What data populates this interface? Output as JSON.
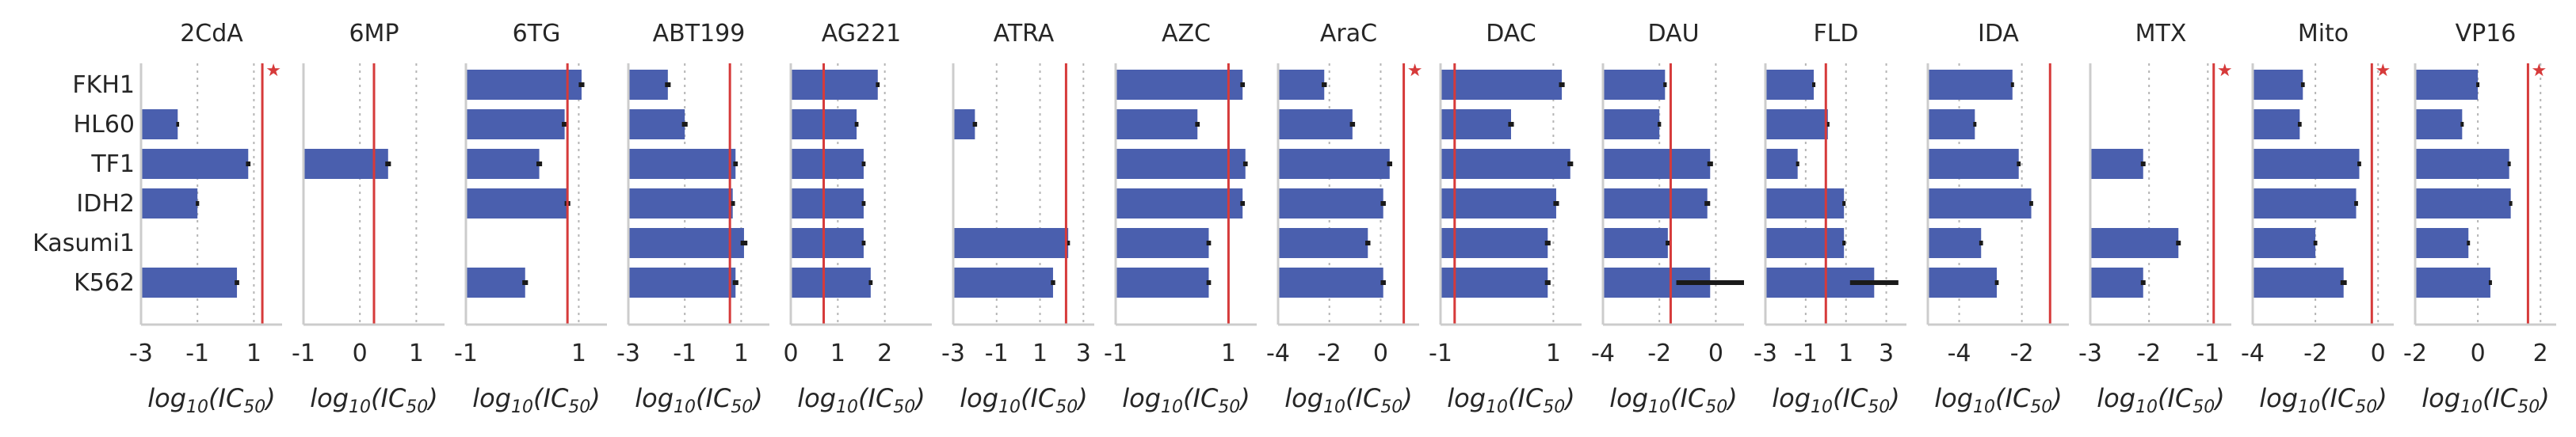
{
  "chart_data": {
    "type": "bar",
    "orientation": "horizontal",
    "categories": [
      "FKH1",
      "HL60",
      "TF1",
      "IDH2",
      "Kasumi1",
      "K562"
    ],
    "xlabel": "log10(IC50)",
    "bar_color": "#4a5fae",
    "reference_line_color": "#d63a3a",
    "grid": "dotted vertical gridlines",
    "panels": [
      {
        "title": "2CdA",
        "xlim": [
          -3,
          2
        ],
        "ticks": [
          -3,
          -1,
          1
        ],
        "tick_labels": [
          "-3",
          "-1",
          "1"
        ],
        "values": [
          null,
          -1.7,
          0.8,
          -1.0,
          null,
          0.4
        ],
        "errors": [
          0,
          0.05,
          0.08,
          0.06,
          0,
          0.08
        ],
        "ref": 1.3,
        "star": true
      },
      {
        "title": "6MP",
        "xlim": [
          -1,
          1.5
        ],
        "ticks": [
          -1,
          0,
          1
        ],
        "tick_labels": [
          "-1",
          "0",
          "1"
        ],
        "values": [
          null,
          null,
          0.5,
          null,
          null,
          null
        ],
        "errors": [
          0,
          0,
          0.05,
          0,
          0,
          0
        ],
        "ref": 0.25,
        "star": false
      },
      {
        "title": "6TG",
        "xlim": [
          -1,
          1.5
        ],
        "ticks": [
          -1,
          1
        ],
        "tick_labels": [
          "-1",
          "1"
        ],
        "values": [
          1.05,
          0.75,
          0.3,
          0.8,
          null,
          0.05
        ],
        "errors": [
          0.05,
          0.05,
          0.05,
          0.05,
          0,
          0.05
        ],
        "ref": 0.8,
        "star": false
      },
      {
        "title": "ABT199",
        "xlim": [
          -3,
          2
        ],
        "ticks": [
          -3,
          -1,
          1
        ],
        "tick_labels": [
          "-3",
          "-1",
          "1"
        ],
        "values": [
          -1.6,
          -1.0,
          0.8,
          0.7,
          1.1,
          0.8
        ],
        "errors": [
          0.1,
          0.1,
          0.08,
          0.08,
          0.12,
          0.1
        ],
        "ref": 0.6,
        "star": false
      },
      {
        "title": "AG221",
        "xlim": [
          0,
          3
        ],
        "ticks": [
          0,
          1,
          2
        ],
        "tick_labels": [
          "0",
          "1",
          "2"
        ],
        "values": [
          1.85,
          1.4,
          1.55,
          1.55,
          1.55,
          1.7
        ],
        "errors": [
          0.04,
          0.04,
          0.04,
          0.04,
          0.04,
          0.04
        ],
        "ref": 0.7,
        "star": false
      },
      {
        "title": "ATRA",
        "xlim": [
          -3,
          3.5
        ],
        "ticks": [
          -3,
          -1,
          1,
          3
        ],
        "tick_labels": [
          "-3",
          "-1",
          "1",
          "3"
        ],
        "values": [
          null,
          -2.0,
          null,
          null,
          2.3,
          1.6
        ],
        "errors": [
          0,
          0.1,
          0,
          0,
          0.08,
          0.1
        ],
        "ref": 2.2,
        "star": false
      },
      {
        "title": "AZC",
        "xlim": [
          -1,
          1.5
        ],
        "ticks": [
          -1,
          1
        ],
        "tick_labels": [
          "-1",
          "1"
        ],
        "values": [
          1.25,
          0.45,
          1.3,
          1.25,
          0.65,
          0.65
        ],
        "errors": [
          0.04,
          0.04,
          0.04,
          0.04,
          0.04,
          0.04
        ],
        "ref": 1.0,
        "star": false
      },
      {
        "title": "AraC",
        "xlim": [
          -4,
          1.5
        ],
        "ticks": [
          -4,
          -2,
          0
        ],
        "tick_labels": [
          "-4",
          "-2",
          "0"
        ],
        "values": [
          -2.2,
          -1.1,
          0.35,
          0.1,
          -0.5,
          0.1
        ],
        "errors": [
          0.1,
          0.1,
          0.1,
          0.1,
          0.1,
          0.1
        ],
        "ref": 0.9,
        "star": true
      },
      {
        "title": "DAC",
        "xlim": [
          -1,
          1.5
        ],
        "ticks": [
          -1,
          1
        ],
        "tick_labels": [
          "-1",
          "1"
        ],
        "values": [
          1.15,
          0.25,
          1.3,
          1.05,
          0.9,
          0.9
        ],
        "errors": [
          0.05,
          0.05,
          0.05,
          0.05,
          0.05,
          0.05
        ],
        "ref": -0.75,
        "star": false
      },
      {
        "title": "DAU",
        "xlim": [
          -4,
          1
        ],
        "ticks": [
          -4,
          -2,
          0
        ],
        "tick_labels": [
          "-4",
          "-2",
          "0"
        ],
        "values": [
          -1.8,
          -2.0,
          -0.2,
          -0.3,
          -1.7,
          -0.2
        ],
        "errors": [
          0.06,
          0.06,
          0.1,
          0.1,
          0.08,
          1.2
        ],
        "ref": -1.6,
        "star": false
      },
      {
        "title": "FLD",
        "xlim": [
          -3,
          4
        ],
        "ticks": [
          -3,
          -1,
          1,
          3
        ],
        "tick_labels": [
          "-3",
          "-1",
          "1",
          "3"
        ],
        "values": [
          -0.6,
          0.1,
          -1.4,
          0.9,
          0.9,
          2.4
        ],
        "errors": [
          0.08,
          0.08,
          0.08,
          0.08,
          0.08,
          1.2
        ],
        "ref": 0.0,
        "star": false
      },
      {
        "title": "IDA",
        "xlim": [
          -5,
          -0.5
        ],
        "ticks": [
          -4,
          -2
        ],
        "tick_labels": [
          "-4",
          "-2"
        ],
        "values": [
          -2.3,
          -3.5,
          -2.1,
          -1.7,
          -3.3,
          -2.8
        ],
        "errors": [
          0.05,
          0.05,
          0.06,
          0.06,
          0.06,
          0.06
        ],
        "ref": -1.1,
        "star": false
      },
      {
        "title": "MTX",
        "xlim": [
          -3,
          -0.6
        ],
        "ticks": [
          -3,
          -2,
          -1
        ],
        "tick_labels": [
          "-3",
          "-2",
          "-1"
        ],
        "values": [
          null,
          null,
          -2.1,
          null,
          -1.5,
          -2.1
        ],
        "errors": [
          0,
          0,
          0.04,
          0,
          0.04,
          0.04
        ],
        "ref": -0.9,
        "star": true
      },
      {
        "title": "Mito",
        "xlim": [
          -4,
          0.5
        ],
        "ticks": [
          -4,
          -2,
          0
        ],
        "tick_labels": [
          "-4",
          "-2",
          "0"
        ],
        "values": [
          -2.4,
          -2.5,
          -0.6,
          -0.7,
          -2.0,
          -1.1
        ],
        "errors": [
          0.06,
          0.06,
          0.06,
          0.06,
          0.06,
          0.1
        ],
        "ref": -0.2,
        "star": true
      },
      {
        "title": "VP16",
        "xlim": [
          -2,
          2.5
        ],
        "ticks": [
          -2,
          0,
          2
        ],
        "tick_labels": [
          "-2",
          "0",
          "2"
        ],
        "values": [
          0.0,
          -0.5,
          1.0,
          1.05,
          -0.3,
          0.4
        ],
        "errors": [
          0.05,
          0.05,
          0.05,
          0.05,
          0.05,
          0.05
        ],
        "ref": 1.6,
        "star": true
      }
    ]
  }
}
